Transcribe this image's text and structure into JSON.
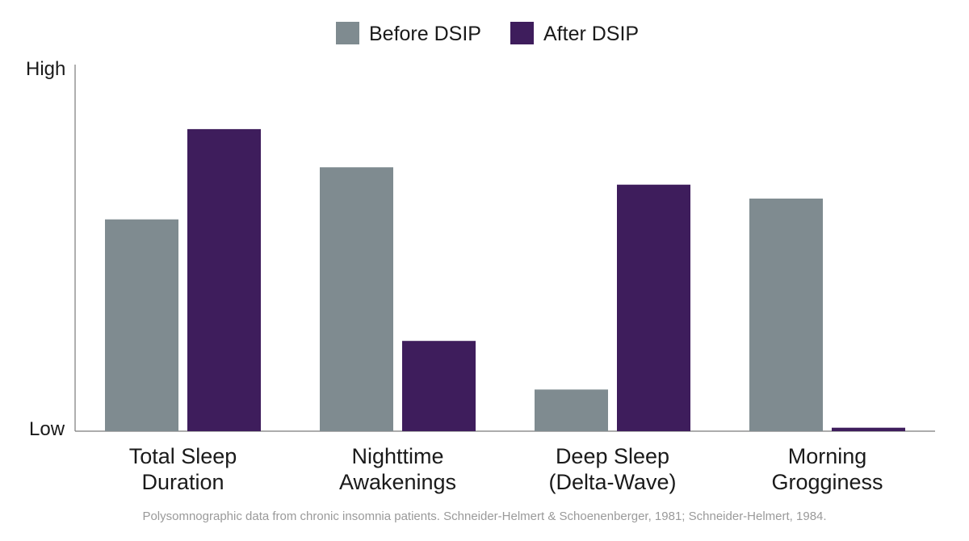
{
  "chart_data": {
    "type": "bar",
    "categories": [
      [
        "Total Sleep",
        "Duration"
      ],
      [
        "Nighttime",
        "Awakenings"
      ],
      [
        "Deep Sleep",
        "(Delta-Wave)"
      ],
      [
        "Morning",
        "Grogginess"
      ]
    ],
    "series": [
      {
        "name": "Before DSIP",
        "color": "#7f8b90",
        "values": [
          0.61,
          0.76,
          0.12,
          0.67
        ]
      },
      {
        "name": "After DSIP",
        "color": "#3e1d5c",
        "values": [
          0.87,
          0.26,
          0.71,
          0.01
        ]
      }
    ],
    "y_tick_labels": {
      "top": "High",
      "bottom": "Low"
    },
    "ylim": [
      0,
      1
    ],
    "grid": false,
    "legend_position": "top-center"
  },
  "caption": "Polysomnographic data from chronic insomnia patients. Schneider-Helmert & Schoenenberger, 1981; Schneider-Helmert, 1984."
}
